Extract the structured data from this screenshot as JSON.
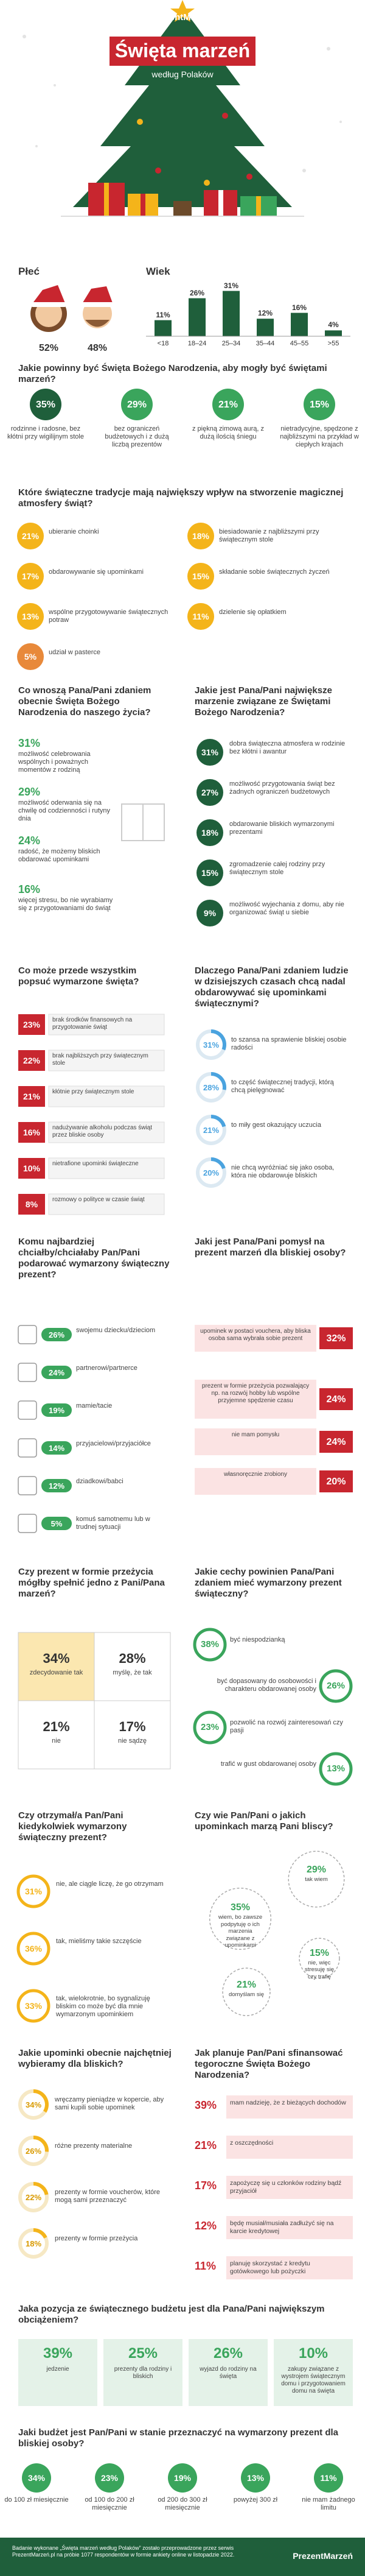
{
  "header": {
    "brand": "PrezentMarzeń",
    "title": "Święta marzeń",
    "subtitle": "według Polaków"
  },
  "gender": {
    "title": "Płeć",
    "women": "52%",
    "men": "48%"
  },
  "age": {
    "title": "Wiek",
    "categories": [
      "<18",
      "18–24",
      "25–34",
      "35–44",
      "45–55",
      ">55"
    ],
    "values": [
      {
        "value": 11,
        "label": "11%"
      },
      {
        "value": 26,
        "label": "26%"
      },
      {
        "value": 31,
        "label": "31%"
      },
      {
        "value": 12,
        "label": "12%"
      },
      {
        "value": 16,
        "label": "16%"
      },
      {
        "value": 4,
        "label": "4%"
      }
    ]
  },
  "q1": {
    "title": "Jakie powinny być Święta Bożego Narodzenia, aby mogły być świętami marzeń?",
    "items": [
      {
        "pct": "35%",
        "text": "rodzinne i radosne, bez kłótni przy wigilijnym stole"
      },
      {
        "pct": "29%",
        "text": "bez ograniczeń budżetowych i z dużą liczbą prezentów"
      },
      {
        "pct": "21%",
        "text": "z piękną zimową aurą, z dużą ilością śniegu"
      },
      {
        "pct": "15%",
        "text": "nietradycyjne, spędzone z najbliższymi na przykład w ciepłych krajach"
      }
    ]
  },
  "q2": {
    "title": "Które świąteczne tradycje mają największy wpływ na stworzenie magicznej atmosfery świąt?",
    "items": [
      {
        "pct": "21%",
        "text": "ubieranie choinki"
      },
      {
        "pct": "18%",
        "text": "biesiadowanie z najbliższymi przy świątecznym stole"
      },
      {
        "pct": "17%",
        "text": "obdarowywanie się upominkami"
      },
      {
        "pct": "15%",
        "text": "składanie sobie świątecznych życzeń"
      },
      {
        "pct": "13%",
        "text": "wspólne przygotowywanie świątecznych potraw"
      },
      {
        "pct": "11%",
        "text": "dzielenie się opłatkiem"
      },
      {
        "pct": "5%",
        "text": "udział w pasterce"
      }
    ]
  },
  "q3": {
    "title": "Co wnoszą Pana/Pani zdaniem obecnie Święta Bożego Narodzenia do naszego życia?",
    "items": [
      {
        "pct": "31%",
        "text": "możliwość celebrowania wspólnych i poważnych momentów z rodziną"
      },
      {
        "pct": "29%",
        "text": "możliwość oderwania się na chwilę od codzienności i rutyny dnia"
      },
      {
        "pct": "24%",
        "text": "radość, że możemy bliskich obdarować upominkami"
      },
      {
        "pct": "16%",
        "text": "więcej stresu, bo nie wyrabiamy się z przygotowaniami do świąt"
      }
    ]
  },
  "q4": {
    "title": "Jakie jest Pana/Pani największe marzenie związane ze Świętami Bożego Narodzenia?",
    "items": [
      {
        "pct": "31%",
        "text": "dobra świąteczna atmosfera w rodzinie bez kłótni i awantur"
      },
      {
        "pct": "27%",
        "text": "możliwość przygotowania świąt bez żadnych ograniczeń budżetowych"
      },
      {
        "pct": "18%",
        "text": "obdarowanie bliskich wymarzonymi prezentami"
      },
      {
        "pct": "15%",
        "text": "zgromadzenie całej rodziny przy świątecznym stole"
      },
      {
        "pct": "9%",
        "text": "możliwość wyjechania z domu, aby nie organizować świąt u siebie"
      }
    ]
  },
  "q5": {
    "title": "Co może przede wszystkim popsuć wymarzone święta?",
    "items": [
      {
        "pct": "23%",
        "text": "brak środków finansowych na przygotowanie świąt"
      },
      {
        "pct": "22%",
        "text": "brak najbliższych przy świątecznym stole"
      },
      {
        "pct": "21%",
        "text": "kłótnie przy świątecznym stole"
      },
      {
        "pct": "16%",
        "text": "nadużywanie alkoholu podczas świąt przez bliskie osoby"
      },
      {
        "pct": "10%",
        "text": "nietrafione upominki świąteczne"
      },
      {
        "pct": "8%",
        "text": "rozmowy o polityce w czasie świąt"
      }
    ]
  },
  "q6": {
    "title": "Dlaczego Pana/Pani zdaniem ludzie w dzisiejszych czasach chcą nadal obdarowywać się upominkami świątecznymi?",
    "items": [
      {
        "value": 31,
        "label": "31%",
        "text": "to szansa na sprawienie bliskiej osobie radości"
      },
      {
        "value": 28,
        "label": "28%",
        "text": "to część świątecznej tradycji, którą chcą pielęgnować"
      },
      {
        "value": 21,
        "label": "21%",
        "text": "to miły gest okazujący uczucia"
      },
      {
        "value": 20,
        "label": "20%",
        "text": "nie chcą wyróżniać się jako osoba, która nie obdarowuje bliskich"
      }
    ]
  },
  "q7": {
    "title": "Komu najbardziej chciałby/chciałaby Pan/Pani podarować wymarzony świąteczny prezent?",
    "items": [
      {
        "pct": "26%",
        "text": "swojemu dziecku/dzieciom"
      },
      {
        "pct": "24%",
        "text": "partnerowi/partnerce"
      },
      {
        "pct": "19%",
        "text": "mamie/tacie"
      },
      {
        "pct": "14%",
        "text": "przyjacielowi/przyjaciółce"
      },
      {
        "pct": "12%",
        "text": "dziadkowi/babci"
      },
      {
        "pct": "5%",
        "text": "komuś samotnemu lub w trudnej sytuacji"
      }
    ]
  },
  "q8": {
    "title": "Jaki jest Pana/Pani pomysł na prezent marzeń dla bliskiej osoby?",
    "items": [
      {
        "pct": "32%",
        "text": "upominek w postaci vouchera, aby bliska osoba sama wybrała sobie prezent"
      },
      {
        "pct": "24%",
        "text": "prezent w formie przeżycia pozwalający np. na rozwój hobby lub wspólne przyjemne spędzenie czasu"
      },
      {
        "pct": "24%",
        "text": "nie mam pomysłu"
      },
      {
        "pct": "20%",
        "text": "własnoręcznie zrobiony"
      }
    ]
  },
  "q9": {
    "title": "Czy prezent w formie przeżycia mógłby spełnić jedno z Pani/Pana marzeń?",
    "items": [
      {
        "pct": "34%",
        "text": "zdecydowanie tak"
      },
      {
        "pct": "28%",
        "text": "myślę, że tak"
      },
      {
        "pct": "21%",
        "text": "nie"
      },
      {
        "pct": "17%",
        "text": "nie sądzę"
      }
    ]
  },
  "q10": {
    "title": "Jakie cechy powinien Pana/Pani zdaniem mieć wymarzony prezent świąteczny?",
    "items": [
      {
        "pct": "38%",
        "text": "być niespodzianką"
      },
      {
        "pct": "26%",
        "text": "być dopasowany do osobowości i charakteru obdarowanej osoby"
      },
      {
        "pct": "23%",
        "text": "pozwolić na rozwój zainteresowań czy pasji"
      },
      {
        "pct": "13%",
        "text": "trafić w gust obdarowanej osoby"
      }
    ]
  },
  "q11": {
    "title": "Czy otrzymał/a Pan/Pani kiedykolwiek wymarzony świąteczny prezent?",
    "items": [
      {
        "pct": "31%",
        "text": "nie, ale ciągle liczę, że go otrzymam"
      },
      {
        "pct": "36%",
        "text": "tak, mieliśmy takie szczęście"
      },
      {
        "pct": "33%",
        "text": "tak, wielokrotnie, bo sygnalizuję bliskim co może być dla mnie wymarzonym upominkiem"
      }
    ]
  },
  "q12": {
    "title": "Czy wie Pan/Pani o jakich upominkach marzą Pani bliscy?",
    "items": [
      {
        "value": 35,
        "label": "35%",
        "text": "wiem, bo zawsze podpytuję o ich marzenia związane z upominkami"
      },
      {
        "value": 29,
        "label": "29%",
        "text": "tak wiem"
      },
      {
        "value": 21,
        "label": "21%",
        "text": "domyślam się"
      },
      {
        "value": 15,
        "label": "15%",
        "text": "nie, więc stresuję się czy trafię"
      }
    ]
  },
  "q13": {
    "title": "Jakie upominki obecnie najchętniej wybieramy dla bliskich?",
    "items": [
      {
        "value": 34,
        "label": "34%",
        "text": "wręczamy pieniądze w kopercie, aby sami kupili sobie upominek"
      },
      {
        "value": 26,
        "label": "26%",
        "text": "różne prezenty materialne"
      },
      {
        "value": 22,
        "label": "22%",
        "text": "prezenty w formie voucherów, które mogą sami przeznaczyć"
      },
      {
        "value": 18,
        "label": "18%",
        "text": "prezenty w formie przeżycia"
      }
    ]
  },
  "q14": {
    "title": "Jak planuje Pan/Pani sfinansować tegoroczne Święta Bożego Narodzenia?",
    "items": [
      {
        "pct": "39%",
        "text": "mam nadzieję, że z bieżących dochodów"
      },
      {
        "pct": "21%",
        "text": "z oszczędności"
      },
      {
        "pct": "17%",
        "text": "zapożyczę się u członków rodziny bądź przyjaciół"
      },
      {
        "pct": "12%",
        "text": "będę musiał/musiała zadłużyć się na karcie kredytowej"
      },
      {
        "pct": "11%",
        "text": "planuję skorzystać z kredytu gotówkowego lub pożyczki"
      }
    ]
  },
  "q15": {
    "title": "Jaka pozycja ze świątecznego budżetu jest dla Pana/Pani największym obciążeniem?",
    "items": [
      {
        "pct": "39%",
        "text": "jedzenie"
      },
      {
        "pct": "25%",
        "text": "prezenty dla rodziny i bliskich"
      },
      {
        "pct": "26%",
        "text": "wyjazd do rodziny na święta"
      },
      {
        "pct": "10%",
        "text": "zakupy związane z wystrojem świątecznym domu i przygotowaniem domu na święta"
      }
    ]
  },
  "q16": {
    "title": "Jaki budżet jest Pan/Pani w stanie przeznaczyć na wymarzony prezent dla bliskiej osoby?",
    "items": [
      {
        "pct": "34%",
        "text": "do 100 zł miesięcznie"
      },
      {
        "pct": "23%",
        "text": "od 100 do 200 zł miesięcznie"
      },
      {
        "pct": "19%",
        "text": "od 200 do 300 zł miesięcznie"
      },
      {
        "pct": "13%",
        "text": "powyżej 300 zł"
      },
      {
        "pct": "11%",
        "text": "nie mam żadnego limitu"
      }
    ]
  },
  "footer": {
    "source": "Badanie wykonane „Święta marzeń według Polaków” zostało przeprowadzone przez serwis PrezentMarzeń.pl na próbie 1077 respondentów w formie ankiety online w listopadzie 2022.",
    "brand": "PrezentMarzeń"
  }
}
